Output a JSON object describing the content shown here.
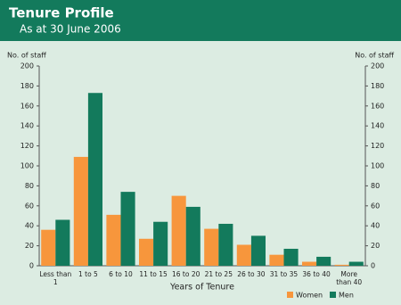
{
  "chart_data": {
    "type": "bar",
    "title": "Tenure Profile",
    "subtitle": "As at 30 June 2006",
    "x_label": "Years of Tenure",
    "y_label": "No. of staff",
    "y2_label": "No. of staff",
    "categories": [
      "Less than 1",
      "1 to 5",
      "6 to 10",
      "11 to 15",
      "16 to 20",
      "21 to 25",
      "26 to 30",
      "31 to 35",
      "36 to 40",
      "More than 40"
    ],
    "series": [
      {
        "name": "Women",
        "color": "#f7963c",
        "values": [
          36,
          109,
          51,
          27,
          70,
          37,
          21,
          11,
          4,
          1
        ]
      },
      {
        "name": "Men",
        "color": "#137a5c",
        "values": [
          46,
          173,
          74,
          44,
          59,
          42,
          30,
          17,
          9,
          4
        ]
      }
    ],
    "ylim": [
      0,
      200
    ],
    "yticks": [
      0,
      20,
      40,
      60,
      80,
      100,
      120,
      140,
      160,
      180,
      200
    ],
    "y2lim": [
      0,
      200
    ],
    "y2ticks": [
      0,
      20,
      40,
      60,
      80,
      100,
      120,
      140,
      160,
      180,
      200
    ],
    "legend": "bottom-right"
  }
}
